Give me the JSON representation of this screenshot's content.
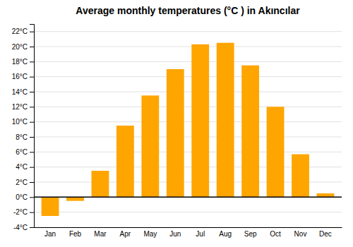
{
  "chart_data": {
    "type": "bar",
    "title": "Average monthly temperatures (°C ) in Akıncılar",
    "categories": [
      "Jan",
      "Feb",
      "Mar",
      "Apr",
      "May",
      "Jun",
      "Jul",
      "Aug",
      "Sep",
      "Oct",
      "Nov",
      "Dec"
    ],
    "values": [
      -2.5,
      -0.5,
      3.5,
      9.5,
      13.5,
      17.0,
      20.3,
      20.5,
      17.5,
      12.0,
      5.7,
      0.5
    ],
    "color": "#FFA500",
    "ylim": [
      -4,
      23
    ],
    "yticks": [
      {
        "value": -4,
        "label": "-4°C"
      },
      {
        "value": -2,
        "label": "-2°C"
      },
      {
        "value": 0,
        "label": "0°C"
      },
      {
        "value": 2,
        "label": "2°C"
      },
      {
        "value": 4,
        "label": "4°C"
      },
      {
        "value": 6,
        "label": "6°C"
      },
      {
        "value": 8,
        "label": "8°C"
      },
      {
        "value": 10,
        "label": "10°C"
      },
      {
        "value": 12,
        "label": "12°C"
      },
      {
        "value": 14,
        "label": "14°C"
      },
      {
        "value": 16,
        "label": "16°C"
      },
      {
        "value": 18,
        "label": "18°C"
      },
      {
        "value": 20,
        "label": "20°C"
      },
      {
        "value": 22,
        "label": "22°C"
      }
    ],
    "grid": true
  }
}
